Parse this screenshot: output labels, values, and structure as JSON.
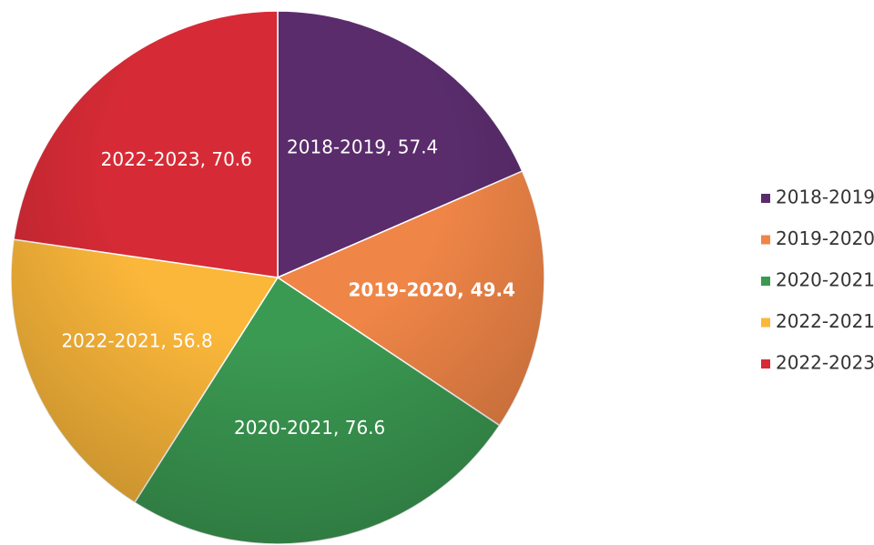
{
  "chart_data": {
    "type": "pie",
    "categories": [
      "2018-2019",
      "2019-2020",
      "2020-2021",
      "2022-2021",
      "2022-2023"
    ],
    "values": [
      57.4,
      49.4,
      76.6,
      56.8,
      70.6
    ],
    "value_labels": [
      "2018-2019, 57.4",
      "2019-2020, 49.4",
      "2020-2021, 76.6",
      "2022-2021, 56.8",
      "2022-2023, 70.6"
    ],
    "colors": [
      "#5a2c6c",
      "#ef8547",
      "#3b9a52",
      "#fbb73a",
      "#d62b36"
    ],
    "legend": "right"
  }
}
